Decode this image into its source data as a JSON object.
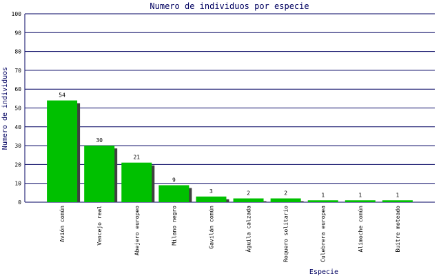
{
  "chart_data": {
    "type": "bar",
    "title": "Numero de individuos por especie",
    "x_label": "Especie",
    "y_label": "Numero de individuos",
    "categories": [
      "Avión común",
      "Vencejo real",
      "Abejero europeo",
      "Milano negro",
      "Gavilán común",
      "Águila calzada",
      "Roquero solitario",
      "Culebrera europea",
      "Alimoche común",
      "Buitre moteado"
    ],
    "values": [
      54,
      30,
      21,
      9,
      3,
      2,
      2,
      1,
      1,
      1
    ],
    "color": "#00c000",
    "shadow_color": "#404040",
    "grid_color": "#000060",
    "ylim": [
      0,
      100
    ],
    "yticks": [
      0,
      10,
      20,
      30,
      40,
      50,
      60,
      70,
      80,
      90,
      100
    ],
    "grid": true
  }
}
